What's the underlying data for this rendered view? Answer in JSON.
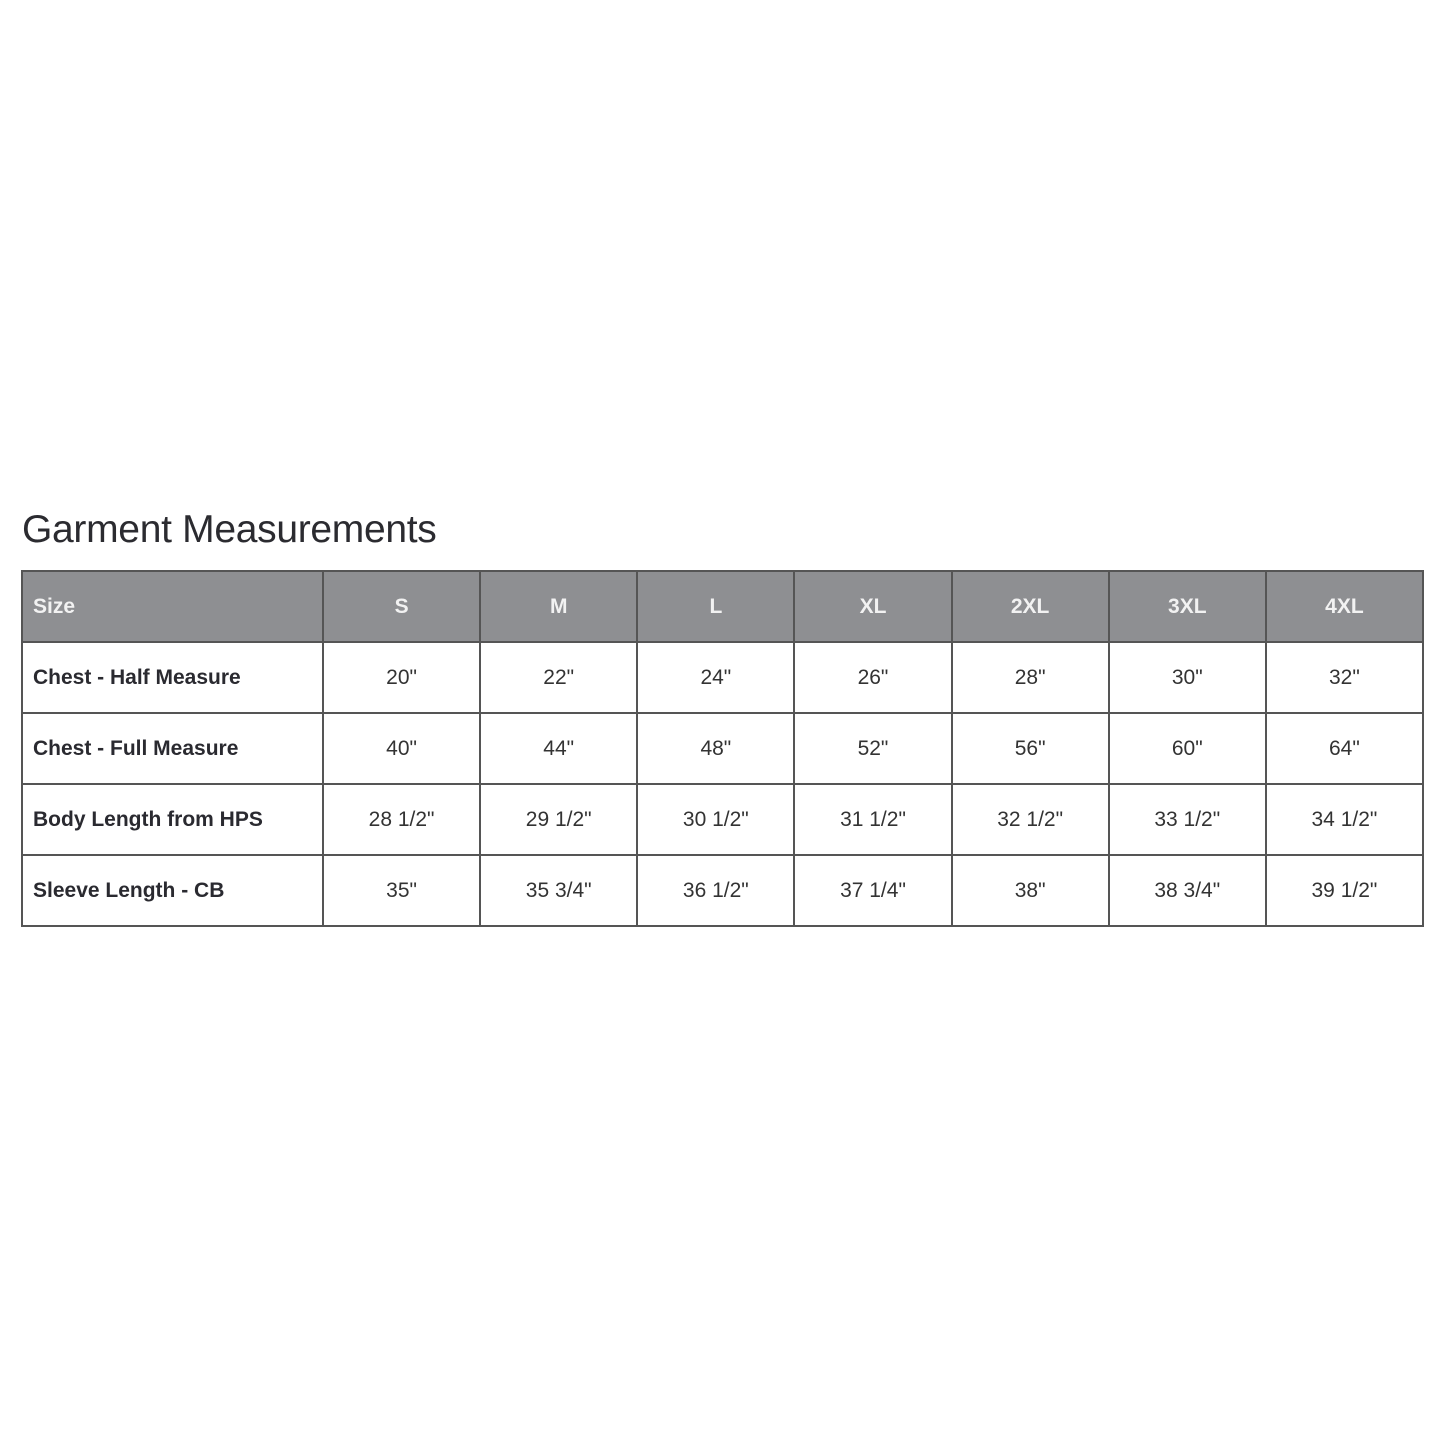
{
  "title": "Garment Measurements",
  "table": {
    "header": [
      "Size",
      "S",
      "M",
      "L",
      "XL",
      "2XL",
      "3XL",
      "4XL"
    ],
    "rows": [
      {
        "label": "Chest - Half Measure",
        "values": [
          "20\"",
          "22\"",
          "24\"",
          "26\"",
          "28\"",
          "30\"",
          "32\""
        ]
      },
      {
        "label": "Chest - Full Measure",
        "values": [
          "40\"",
          "44\"",
          "48\"",
          "52\"",
          "56\"",
          "60\"",
          "64\""
        ]
      },
      {
        "label": "Body Length from HPS",
        "values": [
          "28 1/2\"",
          "29 1/2\"",
          "30 1/2\"",
          "31 1/2\"",
          "32 1/2\"",
          "33 1/2\"",
          "34 1/2\""
        ]
      },
      {
        "label": "Sleeve Length - CB",
        "values": [
          "35\"",
          "35 3/4\"",
          "36 1/2\"",
          "37 1/4\"",
          "38\"",
          "38 3/4\"",
          "39 1/2\""
        ]
      }
    ]
  },
  "colors": {
    "header_bg": "#8e8f92",
    "border": "#555555"
  }
}
